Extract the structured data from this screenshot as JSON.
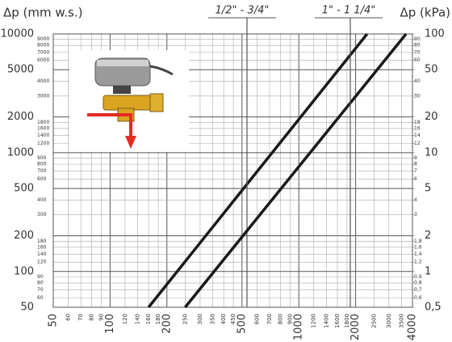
{
  "chart_data": {
    "type": "line",
    "y_label": "Δp (mm w.s.)",
    "y2_label": "Δp (kPa)",
    "log_x": true,
    "log_y": true,
    "grid": true,
    "xlim": [
      50,
      4000
    ],
    "xticks": [
      50,
      100,
      200,
      500,
      1000,
      2000,
      4000
    ],
    "xticks_minor": [
      60,
      70,
      80,
      90,
      120,
      140,
      160,
      180,
      250,
      300,
      350,
      400,
      450,
      600,
      700,
      800,
      900,
      1200,
      1400,
      1600,
      1800,
      2500,
      3000,
      3500
    ],
    "ylim": [
      50,
      10000
    ],
    "yticks": [
      50,
      100,
      200,
      500,
      1000,
      2000,
      5000,
      10000
    ],
    "yticks_minor": [
      60,
      70,
      80,
      90,
      120,
      140,
      160,
      180,
      300,
      400,
      600,
      700,
      800,
      900,
      1200,
      1400,
      1600,
      1800,
      3000,
      4000,
      6000,
      7000,
      8000,
      9000
    ],
    "y2lim": [
      0.5,
      100
    ],
    "y2ticks": [
      {
        "value": 0.5,
        "label": "0,5"
      },
      1,
      2,
      5,
      10,
      20,
      50,
      100
    ],
    "y2ticks_minor": [
      {
        "value": 0.6,
        "label": "0,6"
      },
      {
        "value": 0.7,
        "label": "0,7"
      },
      {
        "value": 0.8,
        "label": "0,8"
      },
      {
        "value": 0.9,
        "label": "0,9"
      },
      {
        "value": 1.2,
        "label": "1,2"
      },
      {
        "value": 1.4,
        "label": "1,4"
      },
      {
        "value": 1.6,
        "label": "1,6"
      },
      {
        "value": 1.8,
        "label": "1,8"
      },
      3,
      4,
      6,
      7,
      8,
      9,
      12,
      14,
      16,
      18,
      30,
      40,
      60,
      70,
      80,
      90
    ],
    "series": [
      {
        "name": "1/2\" - 3/4\"",
        "color": "#1a1a1a",
        "x": [
          160,
          2300
        ],
        "values": [
          50,
          10000
        ]
      },
      {
        "name": "1\" - 1 1/4\"",
        "color": "#1a1a1a",
        "x": [
          250,
          3700
        ],
        "values": [
          50,
          10000
        ]
      }
    ]
  }
}
